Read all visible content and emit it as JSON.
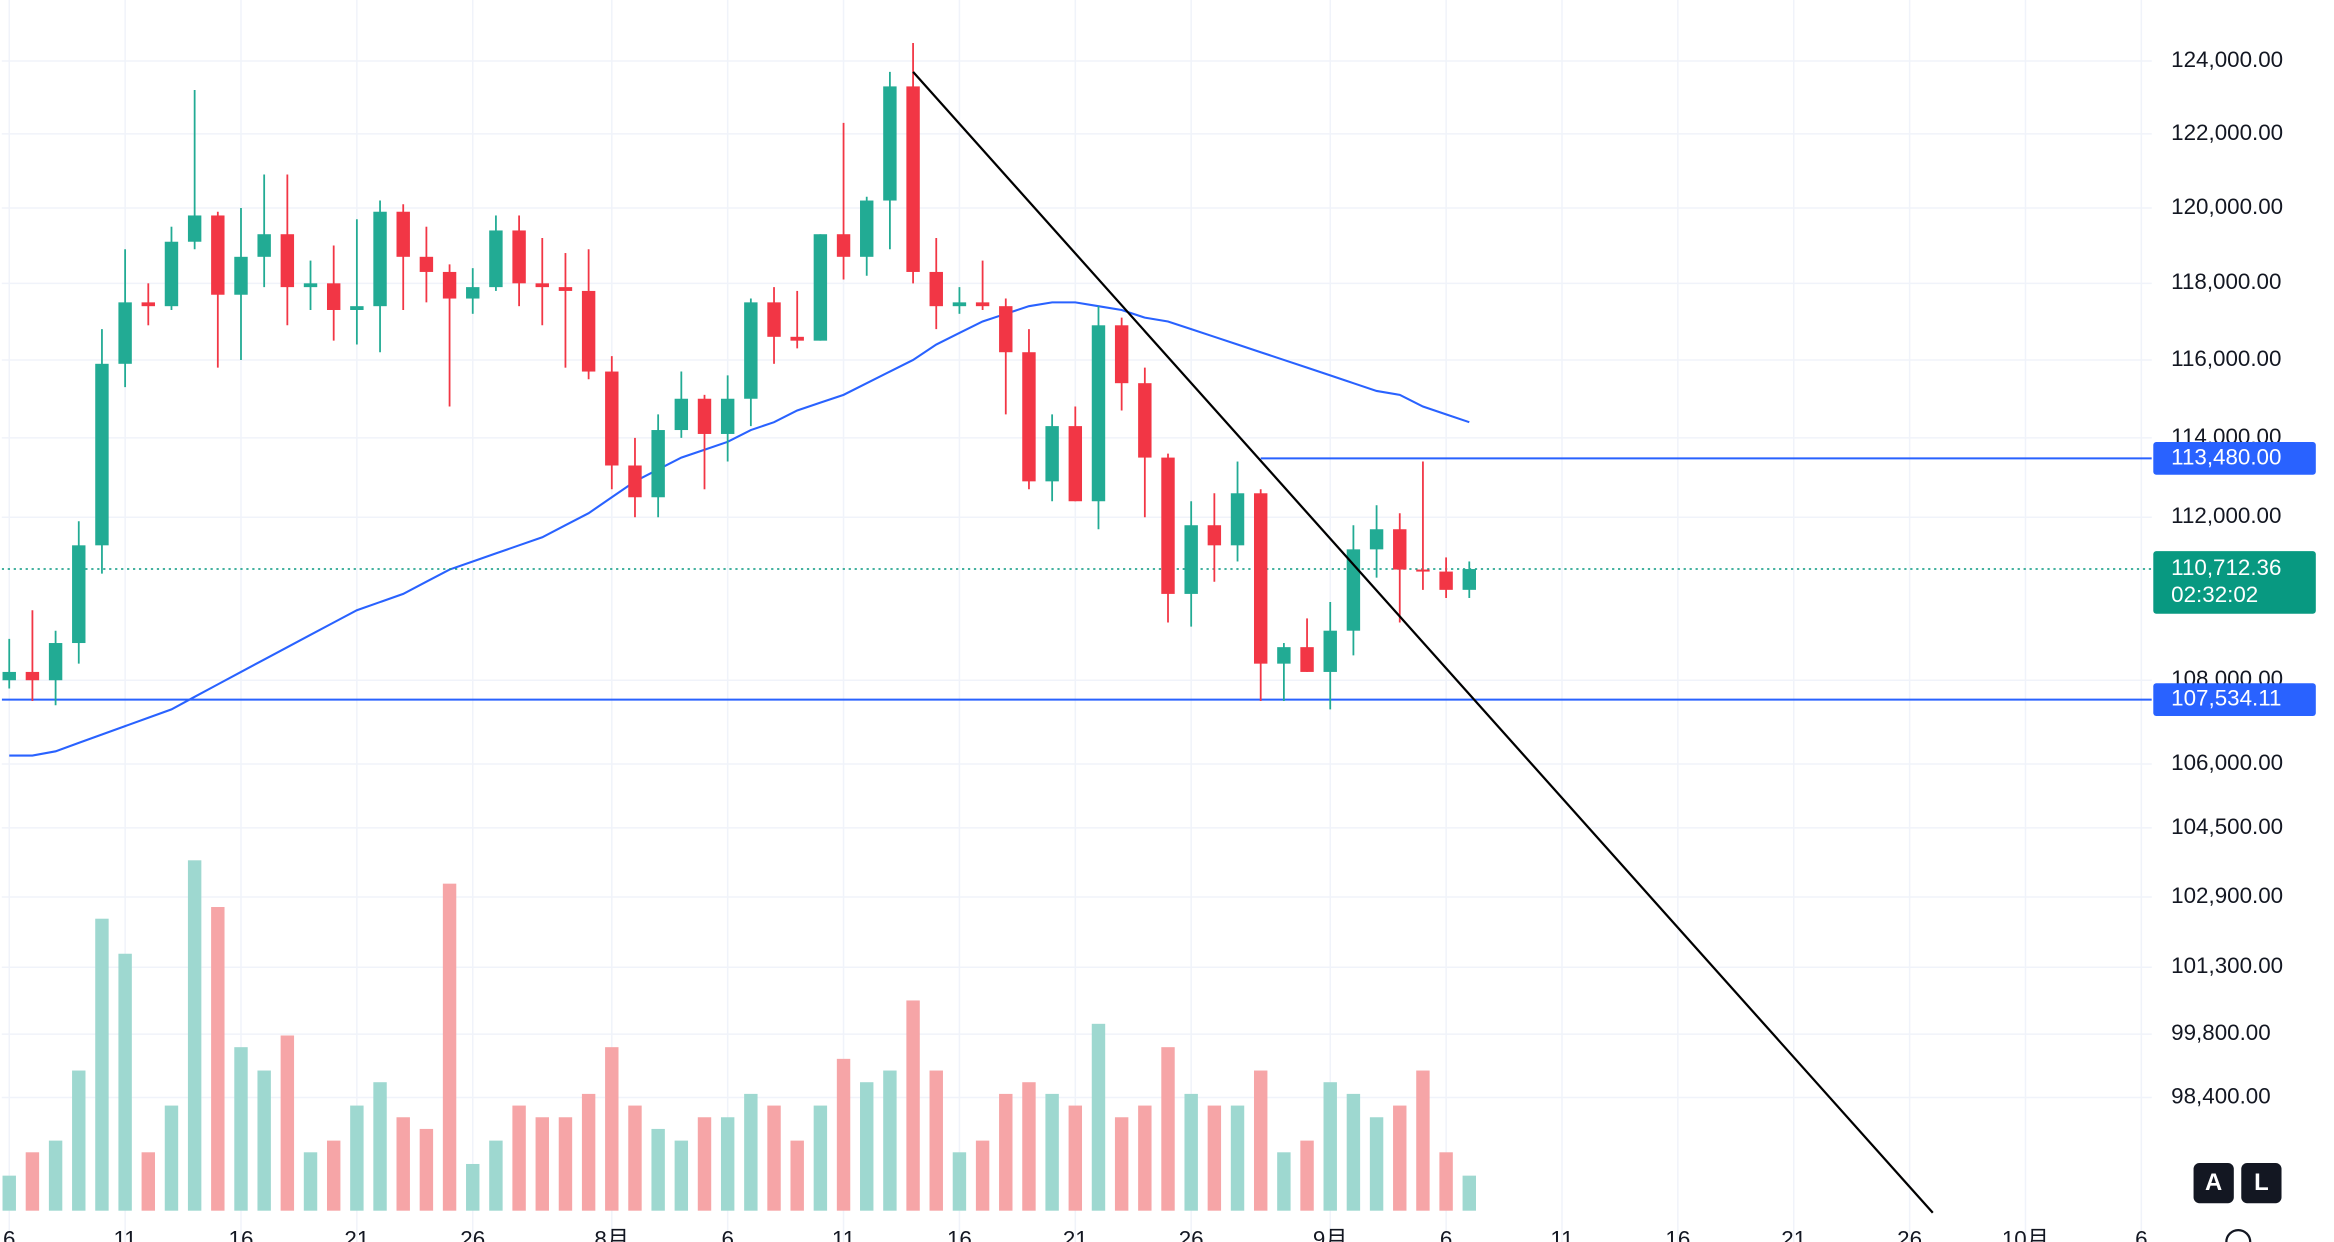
{
  "chart_data": {
    "type": "candlestick",
    "scale": "log",
    "grid": true,
    "up_color": "#22ab94",
    "down_color": "#f23645",
    "volume_up_color": "#9ed8d0",
    "volume_down_color": "#f6a5a7",
    "x": [
      "07-06",
      "07-07",
      "07-08",
      "07-09",
      "07-10",
      "07-11",
      "07-12",
      "07-13",
      "07-14",
      "07-15",
      "07-16",
      "07-17",
      "07-18",
      "07-19",
      "07-20",
      "07-21",
      "07-22",
      "07-23",
      "07-24",
      "07-25",
      "07-26",
      "07-27",
      "07-28",
      "07-29",
      "07-30",
      "07-31",
      "08-01",
      "08-02",
      "08-03",
      "08-04",
      "08-05",
      "08-06",
      "08-07",
      "08-08",
      "08-09",
      "08-10",
      "08-11",
      "08-12",
      "08-13",
      "08-14",
      "08-15",
      "08-16",
      "08-17",
      "08-18",
      "08-19",
      "08-20",
      "08-21",
      "08-22",
      "08-23",
      "08-24",
      "08-25",
      "08-26",
      "08-27",
      "08-28",
      "08-29",
      "08-30",
      "08-31",
      "09-01",
      "09-02",
      "09-03",
      "09-04",
      "09-05",
      "09-06",
      "09-07"
    ],
    "open": [
      108000,
      108200,
      108000,
      108900,
      111300,
      115900,
      117500,
      117400,
      119100,
      119800,
      117700,
      118700,
      119300,
      117900,
      118000,
      117300,
      117400,
      119900,
      118700,
      118300,
      117600,
      117900,
      119400,
      118000,
      117900,
      117800,
      115700,
      113300,
      112500,
      114200,
      115000,
      114100,
      115000,
      117500,
      116600,
      116500,
      119300,
      118700,
      120200,
      123300,
      118300,
      117400,
      117500,
      117400,
      116200,
      112900,
      114300,
      112400,
      116900,
      115400,
      113500,
      110100,
      111800,
      111300,
      112600,
      108400,
      108800,
      108200,
      109200,
      111200,
      111700,
      110700,
      110650,
      110200
    ],
    "high": [
      109000,
      109700,
      109200,
      111900,
      116800,
      118900,
      118000,
      119500,
      123200,
      119900,
      120000,
      120900,
      120900,
      118600,
      119000,
      119700,
      120200,
      120100,
      119500,
      118500,
      118400,
      119800,
      119800,
      119200,
      118800,
      118900,
      116100,
      114000,
      114600,
      115700,
      115100,
      115600,
      117600,
      117900,
      117800,
      119300,
      122300,
      120300,
      123700,
      124500,
      119200,
      117900,
      118600,
      117600,
      116800,
      114600,
      114800,
      117400,
      117100,
      115800,
      113600,
      112400,
      112600,
      113400,
      112700,
      108900,
      109500,
      109900,
      111800,
      112300,
      112100,
      113400,
      111000,
      110900
    ],
    "low": [
      107800,
      107500,
      107400,
      108400,
      110600,
      115300,
      116900,
      117300,
      118900,
      115800,
      116000,
      117900,
      116900,
      117300,
      116500,
      116400,
      116200,
      117300,
      117500,
      114800,
      117200,
      117800,
      117400,
      116900,
      115800,
      115500,
      112700,
      112000,
      112000,
      114000,
      112700,
      113400,
      114300,
      115900,
      116300,
      116500,
      118100,
      118200,
      118900,
      118000,
      116800,
      117200,
      117300,
      114600,
      112700,
      112400,
      112400,
      111700,
      114700,
      112000,
      109400,
      109300,
      110400,
      110900,
      107500,
      107500,
      108200,
      107300,
      108600,
      110500,
      109400,
      110200,
      110000,
      110000
    ],
    "close": [
      108200,
      108000,
      108900,
      111300,
      115900,
      117500,
      117400,
      119100,
      119800,
      117700,
      118700,
      119300,
      117900,
      118000,
      117300,
      117400,
      119900,
      118700,
      118300,
      117600,
      117900,
      119400,
      118000,
      117900,
      117800,
      115700,
      113300,
      112500,
      114200,
      115000,
      114100,
      115000,
      117500,
      116600,
      116500,
      119300,
      118700,
      120200,
      123300,
      118300,
      117400,
      117500,
      117400,
      116200,
      112900,
      114300,
      112400,
      116900,
      115400,
      113500,
      110100,
      111800,
      111300,
      112600,
      108400,
      108800,
      108200,
      109200,
      111200,
      111700,
      110700,
      110650,
      110200,
      110712.36
    ],
    "volume": [
      3,
      5,
      6,
      12,
      25,
      22,
      5,
      9,
      30,
      26,
      14,
      12,
      15,
      5,
      6,
      9,
      11,
      8,
      7,
      28,
      4,
      6,
      9,
      8,
      8,
      10,
      14,
      9,
      7,
      6,
      8,
      8,
      10,
      9,
      6,
      9,
      13,
      11,
      12,
      18,
      12,
      5,
      6,
      10,
      11,
      10,
      9,
      16,
      8,
      9,
      14,
      10,
      9,
      9,
      12,
      5,
      6,
      11,
      10,
      8,
      9,
      12,
      5,
      3
    ],
    "ma": {
      "color": "#2962ff",
      "values": [
        106200,
        106200,
        106300,
        106500,
        106700,
        106900,
        107100,
        107300,
        107600,
        107900,
        108200,
        108500,
        108800,
        109100,
        109400,
        109700,
        109900,
        110100,
        110400,
        110700,
        110900,
        111100,
        111300,
        111500,
        111800,
        112100,
        112500,
        112900,
        113200,
        113500,
        113700,
        113900,
        114200,
        114400,
        114700,
        114900,
        115100,
        115400,
        115700,
        116000,
        116400,
        116700,
        117000,
        117200,
        117400,
        117500,
        117500,
        117400,
        117300,
        117100,
        117000,
        116800,
        116600,
        116400,
        116200,
        116000,
        115800,
        115600,
        115400,
        115200,
        115100,
        114800,
        114600,
        114400
      ]
    },
    "xlim": [
      "07-06",
      "10-06"
    ],
    "xticks": [
      {
        "value": "07-06",
        "label": "6"
      },
      {
        "value": "07-11",
        "label": "11"
      },
      {
        "value": "07-16",
        "label": "16"
      },
      {
        "value": "07-21",
        "label": "21"
      },
      {
        "value": "07-26",
        "label": "26"
      },
      {
        "value": "08-01",
        "label": "8月"
      },
      {
        "value": "08-06",
        "label": "6"
      },
      {
        "value": "08-11",
        "label": "11"
      },
      {
        "value": "08-16",
        "label": "16"
      },
      {
        "value": "08-21",
        "label": "21"
      },
      {
        "value": "08-26",
        "label": "26"
      },
      {
        "value": "09-01",
        "label": "9月"
      },
      {
        "value": "09-06",
        "label": "6"
      },
      {
        "value": "09-11",
        "label": "11"
      },
      {
        "value": "09-16",
        "label": "16"
      },
      {
        "value": "09-21",
        "label": "21"
      },
      {
        "value": "09-26",
        "label": "26"
      },
      {
        "value": "10-01",
        "label": "10月"
      },
      {
        "value": "10-06",
        "label": "6"
      }
    ],
    "ylim": [
      96650,
      125700
    ],
    "yticks": [
      {
        "value": 124000,
        "label": "124,000.00"
      },
      {
        "value": 122000,
        "label": "122,000.00"
      },
      {
        "value": 120000,
        "label": "120,000.00"
      },
      {
        "value": 118000,
        "label": "118,000.00"
      },
      {
        "value": 116000,
        "label": "116,000.00"
      },
      {
        "value": 114000,
        "label": "114,000.00"
      },
      {
        "value": 112000,
        "label": "112,000.00"
      },
      {
        "value": 108000,
        "label": "108,000.00"
      },
      {
        "value": 106000,
        "label": "106,000.00"
      },
      {
        "value": 104500,
        "label": "104,500.00"
      },
      {
        "value": 102900,
        "label": "102,900.00"
      },
      {
        "value": 101300,
        "label": "101,300.00"
      },
      {
        "value": 99800,
        "label": "99,800.00"
      },
      {
        "value": 98400,
        "label": "98,400.00"
      }
    ],
    "hlines": [
      {
        "value": 113480,
        "label": "113,480.00",
        "color": "#2962ff",
        "x_start": "08-29"
      },
      {
        "value": 107534.11,
        "label": "107,534.11",
        "color": "#2962ff"
      }
    ],
    "current_price": {
      "value": 110712.36,
      "label": "110,712.36",
      "countdown": "02:32:02",
      "color": "#089981"
    },
    "trendline": {
      "x": [
        "08-14",
        "09-27"
      ],
      "y": [
        123700,
        95900
      ],
      "color": "#000000"
    },
    "buttons": [
      "A",
      "L"
    ]
  }
}
